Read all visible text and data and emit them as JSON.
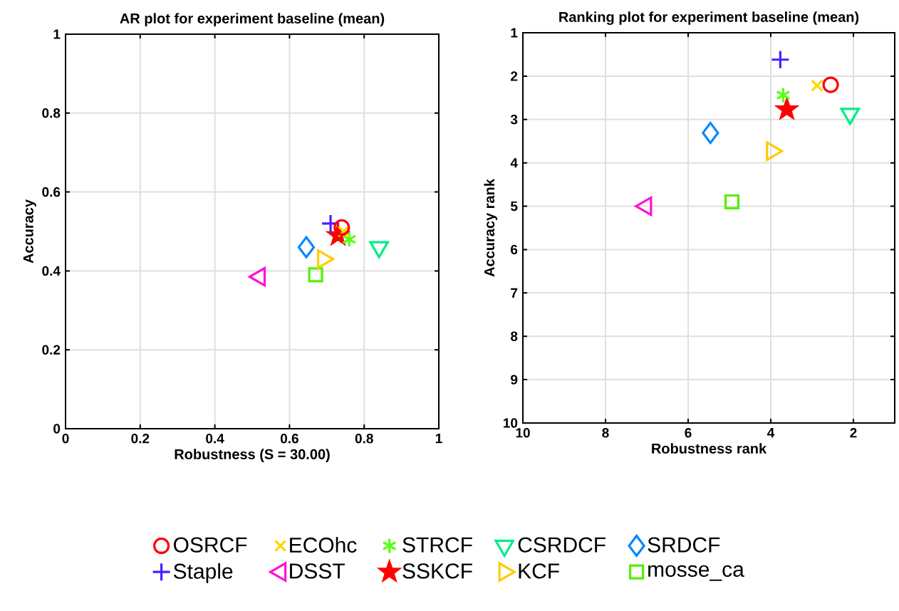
{
  "chart_data": [
    {
      "type": "scatter",
      "title": "AR plot for experiment baseline (mean)",
      "xlabel": "Robustness (S = 30.00)",
      "ylabel": "Accuracy",
      "xlim": [
        0,
        1
      ],
      "ylim": [
        0,
        1
      ],
      "xticks": [
        0,
        0.2,
        0.4,
        0.6,
        0.8,
        1
      ],
      "yticks": [
        0,
        0.2,
        0.4,
        0.6,
        0.8,
        1
      ],
      "grid": true,
      "legend": "bottom",
      "series": [
        {
          "name": "OSRCF",
          "color": "#ff0000",
          "marker": "circle",
          "x": [
            0.74
          ],
          "values": [
            0.51
          ]
        },
        {
          "name": "Staple",
          "color": "#4b1fff",
          "marker": "plus",
          "x": [
            0.71
          ],
          "values": [
            0.52
          ]
        },
        {
          "name": "ECOhc",
          "color": "#ffd700",
          "marker": "cross",
          "x": [
            0.745
          ],
          "values": [
            0.5
          ]
        },
        {
          "name": "DSST",
          "color": "#ff10d8",
          "marker": "triangle-left",
          "x": [
            0.52
          ],
          "values": [
            0.385
          ]
        },
        {
          "name": "STRCF",
          "color": "#55ff11",
          "x": [
            0.76
          ],
          "values": [
            0.48
          ]
        },
        {
          "name": "SSKCF",
          "color": "#ff0000",
          "marker": "star",
          "x": [
            0.73
          ],
          "values": [
            0.49
          ]
        },
        {
          "name": "CSRDCF",
          "color": "#00ee88",
          "marker": "triangle-down",
          "x": [
            0.84
          ],
          "values": [
            0.46
          ]
        },
        {
          "name": "KCF",
          "color": "#ffcc00",
          "marker": "triangle-right",
          "x": [
            0.69
          ],
          "values": [
            0.43
          ]
        },
        {
          "name": "SRDCF",
          "color": "#0088ff",
          "marker": "diamond",
          "x": [
            0.645
          ],
          "values": [
            0.46
          ]
        },
        {
          "name": "mosse_ca",
          "color": "#55ee00",
          "marker": "square",
          "x": [
            0.67
          ],
          "values": [
            0.39
          ]
        }
      ]
    },
    {
      "type": "scatter",
      "title": "Ranking plot for experiment baseline (mean)",
      "xlabel": "Robustness rank",
      "ylabel": "Accuracy rank",
      "xlim": [
        10,
        1
      ],
      "ylim": [
        10,
        1
      ],
      "xticks": [
        10,
        8,
        6,
        4,
        2
      ],
      "yticks": [
        1,
        2,
        3,
        4,
        5,
        6,
        7,
        8,
        9,
        10
      ],
      "grid": true,
      "series": [
        {
          "color": "#ff0000",
          "marker": "circle",
          "x": [
            2.55
          ],
          "values": [
            2.2
          ]
        },
        {
          "color": "#4b1fff",
          "marker": "plus",
          "x": [
            3.77
          ],
          "values": [
            1.62
          ]
        },
        {
          "color": "#ffd700",
          "marker": "cross",
          "x": [
            2.88
          ],
          "values": [
            2.22
          ]
        },
        {
          "color": "#ff10d8",
          "marker": "triangle-left",
          "x": [
            7.02
          ],
          "values": [
            5.0
          ]
        },
        {
          "color": "#55ff11",
          "x": [
            3.7
          ],
          "values": [
            2.44
          ]
        },
        {
          "color": "#ff0000",
          "marker": "star",
          "x": [
            3.61
          ],
          "values": [
            2.77
          ]
        },
        {
          "color": "#00ee88",
          "marker": "triangle-down",
          "x": [
            2.08
          ],
          "values": [
            2.87
          ]
        },
        {
          "color": "#ffcc00",
          "marker": "triangle-right",
          "x": [
            3.97
          ],
          "values": [
            3.73
          ]
        },
        {
          "color": "#0088ff",
          "marker": "diamond",
          "x": [
            5.46
          ],
          "values": [
            3.31
          ]
        },
        {
          "color": "#55ee00",
          "marker": "square",
          "x": [
            4.94
          ],
          "values": [
            4.9
          ]
        }
      ]
    }
  ]
}
